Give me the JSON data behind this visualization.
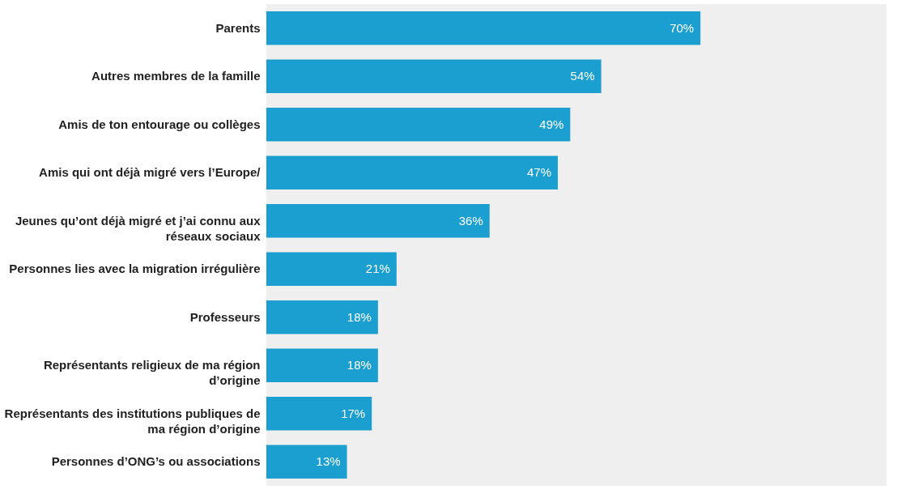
{
  "chart_data": {
    "type": "bar",
    "orientation": "horizontal",
    "categories": [
      "Parents",
      "Autres membres de la famille",
      "Amis de ton entourage ou collèges",
      "Amis qui ont déjà migré vers l’Europe/",
      "Jeunes qu’ont déjà migré et j’ai connu aux réseaux sociaux",
      "Personnes lies avec la migration irrégulière",
      "Professeurs",
      "Représentants religieux de ma région d’origine",
      "Représentants des institutions publiques de ma région d’origine",
      "Personnes d’ONG’s ou associations"
    ],
    "values": [
      70,
      54,
      49,
      47,
      36,
      21,
      18,
      18,
      17,
      13
    ],
    "value_labels": [
      "70%",
      "54%",
      "49%",
      "47%",
      "36%",
      "21%",
      "18%",
      "18%",
      "17%",
      "13%"
    ],
    "color": "#1a9fd0",
    "xlim": [
      0,
      100
    ],
    "tick_labels": "y"
  }
}
